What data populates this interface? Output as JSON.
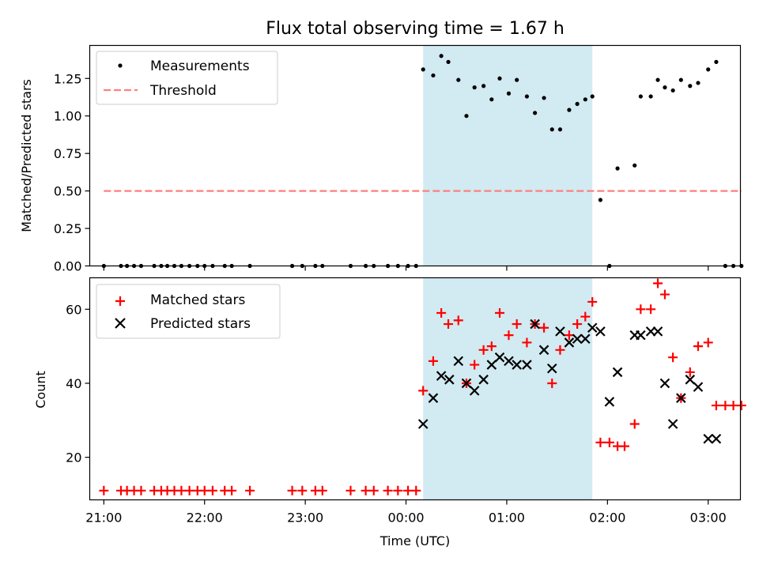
{
  "chart_data": [
    {
      "type": "scatter",
      "title": "Flux total observing time = 1.67 h",
      "xlabel": "",
      "ylabel": "Matched/Predicted stars",
      "x_unit": "hours (UTC, 21:00 = 21)",
      "xlim": [
        20.86,
        27.32
      ],
      "ylim": [
        0,
        1.47
      ],
      "yticks": [
        0.0,
        0.25,
        0.5,
        0.75,
        1.0,
        1.25
      ],
      "ytick_labels": [
        "0.00",
        "0.25",
        "0.50",
        "0.75",
        "1.00",
        "1.25"
      ],
      "shaded_region": {
        "x0": 24.17,
        "x1": 25.85,
        "color": "#add8e6"
      },
      "legend": {
        "position": "upper left",
        "entries": [
          "Measurements",
          "Threshold"
        ]
      },
      "series": [
        {
          "name": "Measurements",
          "marker": "dot",
          "color": "#000000",
          "x": [
            21.0,
            21.17,
            21.23,
            21.3,
            21.37,
            21.5,
            21.57,
            21.63,
            21.7,
            21.77,
            21.85,
            21.93,
            22.0,
            22.08,
            22.2,
            22.27,
            22.45,
            22.87,
            22.97,
            23.1,
            23.17,
            23.45,
            23.6,
            23.68,
            23.82,
            23.92,
            24.02,
            24.1,
            24.17,
            24.27,
            24.35,
            24.42,
            24.52,
            24.6,
            24.68,
            24.77,
            24.85,
            24.93,
            25.02,
            25.1,
            25.2,
            25.28,
            25.37,
            25.45,
            25.53,
            25.62,
            25.7,
            25.78,
            25.85,
            25.93,
            26.02,
            26.1,
            26.27,
            26.33,
            26.43,
            26.5,
            26.57,
            26.65,
            26.73,
            26.82,
            26.9,
            27.0,
            27.08,
            27.17,
            27.25,
            27.33
          ],
          "y": [
            0,
            0,
            0,
            0,
            0,
            0,
            0,
            0,
            0,
            0,
            0,
            0,
            0,
            0,
            0,
            0,
            0,
            0,
            0,
            0,
            0,
            0,
            0,
            0,
            0,
            0,
            0,
            0,
            1.31,
            1.27,
            1.4,
            1.36,
            1.24,
            1.0,
            1.19,
            1.2,
            1.11,
            1.25,
            1.15,
            1.24,
            1.13,
            1.02,
            1.12,
            0.91,
            0.91,
            1.04,
            1.08,
            1.11,
            1.13,
            0.44,
            0.0,
            0.65,
            0.67,
            1.13,
            1.13,
            1.24,
            1.19,
            1.17,
            1.24,
            1.2,
            1.22,
            1.31,
            1.36,
            0,
            0,
            0
          ]
        },
        {
          "name": "Threshold",
          "type": "line",
          "style": "dashed",
          "color": "#ff7f7f",
          "x": [
            21.0,
            27.33
          ],
          "y": [
            0.5,
            0.5
          ]
        }
      ]
    },
    {
      "type": "scatter",
      "title": "",
      "xlabel": "Time (UTC)",
      "ylabel": "Count",
      "x_unit": "hours (UTC, 21:00 = 21)",
      "xlim": [
        20.86,
        27.32
      ],
      "ylim": [
        8.5,
        68.5
      ],
      "xticks": [
        21,
        22,
        23,
        24,
        25,
        26,
        27
      ],
      "xtick_labels": [
        "21:00",
        "22:00",
        "23:00",
        "00:00",
        "01:00",
        "02:00",
        "03:00"
      ],
      "yticks": [
        20,
        40,
        60
      ],
      "ytick_labels": [
        "20",
        "40",
        "60"
      ],
      "shaded_region": {
        "x0": 24.17,
        "x1": 25.85,
        "color": "#add8e6"
      },
      "legend": {
        "position": "upper left",
        "entries": [
          "Matched stars",
          "Predicted stars"
        ]
      },
      "series": [
        {
          "name": "Matched stars",
          "marker": "plus",
          "color": "#ff0000",
          "x": [
            21.0,
            21.17,
            21.23,
            21.3,
            21.37,
            21.5,
            21.57,
            21.63,
            21.7,
            21.77,
            21.85,
            21.93,
            22.0,
            22.08,
            22.2,
            22.27,
            22.45,
            22.87,
            22.97,
            23.1,
            23.17,
            23.45,
            23.6,
            23.68,
            23.82,
            23.92,
            24.02,
            24.1,
            24.17,
            24.27,
            24.35,
            24.42,
            24.52,
            24.6,
            24.68,
            24.77,
            24.85,
            24.93,
            25.02,
            25.1,
            25.2,
            25.28,
            25.37,
            25.45,
            25.53,
            25.62,
            25.7,
            25.78,
            25.85,
            25.93,
            26.02,
            26.1,
            26.17,
            26.27,
            26.33,
            26.43,
            26.5,
            26.57,
            26.65,
            26.73,
            26.82,
            26.9,
            27.0,
            27.08,
            27.17,
            27.25,
            27.33
          ],
          "y": [
            11,
            11,
            11,
            11,
            11,
            11,
            11,
            11,
            11,
            11,
            11,
            11,
            11,
            11,
            11,
            11,
            11,
            11,
            11,
            11,
            11,
            11,
            11,
            11,
            11,
            11,
            11,
            11,
            38,
            46,
            59,
            56,
            57,
            40,
            45,
            49,
            50,
            59,
            53,
            56,
            51,
            56,
            55,
            40,
            49,
            53,
            56,
            58,
            62,
            24,
            24,
            23,
            23,
            29,
            60,
            60,
            67,
            64,
            47,
            36,
            43,
            50,
            51,
            34,
            34,
            34,
            34
          ]
        },
        {
          "name": "Predicted stars",
          "marker": "x",
          "color": "#000000",
          "x": [
            24.17,
            24.27,
            24.35,
            24.43,
            24.52,
            24.6,
            24.68,
            24.77,
            24.85,
            24.93,
            25.02,
            25.1,
            25.2,
            25.28,
            25.37,
            25.45,
            25.53,
            25.62,
            25.7,
            25.78,
            25.85,
            25.93,
            26.02,
            26.1,
            26.27,
            26.33,
            26.43,
            26.5,
            26.57,
            26.65,
            26.73,
            26.82,
            26.9,
            27.0,
            27.08
          ],
          "y": [
            29,
            36,
            42,
            41,
            46,
            40,
            38,
            41,
            45,
            47,
            46,
            45,
            45,
            56,
            49,
            44,
            54,
            51,
            52,
            52,
            55,
            54,
            35,
            43,
            53,
            53,
            54,
            54,
            40,
            29,
            36,
            41,
            39,
            25,
            25
          ]
        }
      ]
    }
  ]
}
